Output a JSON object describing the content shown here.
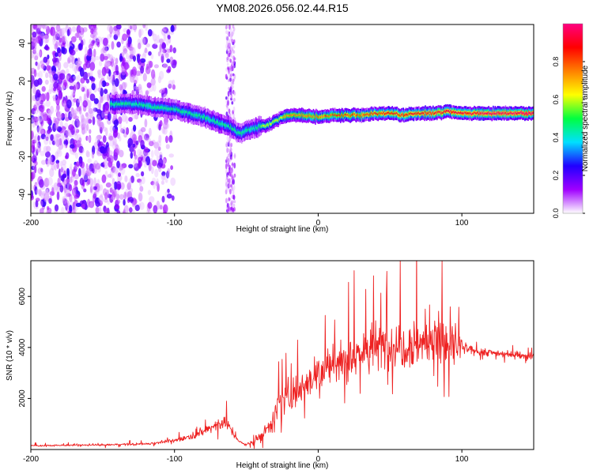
{
  "title": "YM08.2026.056.02.44.R15",
  "chart_data": [
    {
      "type": "heatmap",
      "name": "spectrogram",
      "xlabel": "Height of straight line (km)",
      "ylabel": "Frequency (Hz)",
      "xlim": [
        -200,
        150
      ],
      "ylim": [
        -50,
        50
      ],
      "xticks": [
        -200,
        -100,
        0,
        100
      ],
      "yticks": [
        -40,
        -20,
        0,
        20,
        40
      ],
      "colorbar": {
        "label": "Normalized spectral amplitude",
        "range": [
          0.0,
          1.0
        ],
        "ticks": [
          "0.0",
          "0.2",
          "0.4",
          "0.6",
          "0.8"
        ],
        "colormap": [
          "#ffffff",
          "#a000ff",
          "#2000ff",
          "#00e0ff",
          "#00ff40",
          "#ffff00",
          "#ff8000",
          "#ff0000",
          "#ff0080"
        ]
      },
      "ridge": {
        "x": [
          -145,
          -130,
          -120,
          -110,
          -100,
          -90,
          -80,
          -70,
          -60,
          -55,
          -50,
          -45,
          -40,
          -35,
          -30,
          -25,
          -20,
          -10,
          0,
          10,
          20,
          30,
          40,
          50,
          60,
          70,
          80,
          90,
          100,
          110,
          120,
          130,
          140,
          150
        ],
        "freq": [
          8,
          8,
          7,
          6,
          5,
          3,
          1,
          -2,
          -5,
          -8,
          -6,
          -5,
          -4,
          -3,
          -1,
          1,
          2,
          2,
          1,
          2,
          2,
          2,
          3,
          3,
          2,
          3,
          3,
          4,
          3,
          3,
          3,
          3,
          3,
          3
        ]
      },
      "noise_regions": [
        {
          "x_range": [
            -200,
            -100
          ],
          "freq_range": [
            -50,
            50
          ],
          "note": "broadband scatter"
        },
        {
          "x_range": [
            -64,
            -58
          ],
          "freq_range": [
            -50,
            50
          ],
          "note": "vertical stripe"
        }
      ]
    },
    {
      "type": "line",
      "name": "snr",
      "xlabel": "Height of straight line (km)",
      "ylabel": "SNR (10 * v/v)",
      "xlim": [
        -200,
        150
      ],
      "ylim": [
        0,
        7400
      ],
      "xticks": [
        -200,
        -100,
        0,
        100
      ],
      "yticks": [
        2000,
        4000,
        6000
      ],
      "color": "#ee2222",
      "envelope": {
        "x": [
          -200,
          -150,
          -120,
          -100,
          -90,
          -80,
          -75,
          -70,
          -65,
          -60,
          -55,
          -50,
          -45,
          -40,
          -35,
          -30,
          -25,
          -20,
          -10,
          0,
          10,
          20,
          30,
          40,
          50,
          60,
          70,
          80,
          90,
          95,
          100,
          105,
          110,
          120,
          130,
          140,
          150
        ],
        "mean": [
          150,
          180,
          220,
          350,
          500,
          700,
          850,
          1000,
          1100,
          700,
          300,
          200,
          300,
          500,
          900,
          1400,
          1900,
          2100,
          2600,
          3000,
          3300,
          3600,
          3850,
          4000,
          4100,
          4150,
          4200,
          4250,
          4150,
          4100,
          4000,
          3900,
          3850,
          3800,
          3750,
          3700,
          3650
        ],
        "amplitude": [
          60,
          70,
          90,
          140,
          200,
          300,
          400,
          500,
          550,
          350,
          120,
          100,
          200,
          400,
          700,
          1000,
          1200,
          1300,
          1400,
          1500,
          1600,
          1700,
          1800,
          1900,
          1950,
          2000,
          2050,
          2100,
          2100,
          2000,
          700,
          350,
          300,
          280,
          260,
          250,
          250
        ]
      }
    }
  ]
}
